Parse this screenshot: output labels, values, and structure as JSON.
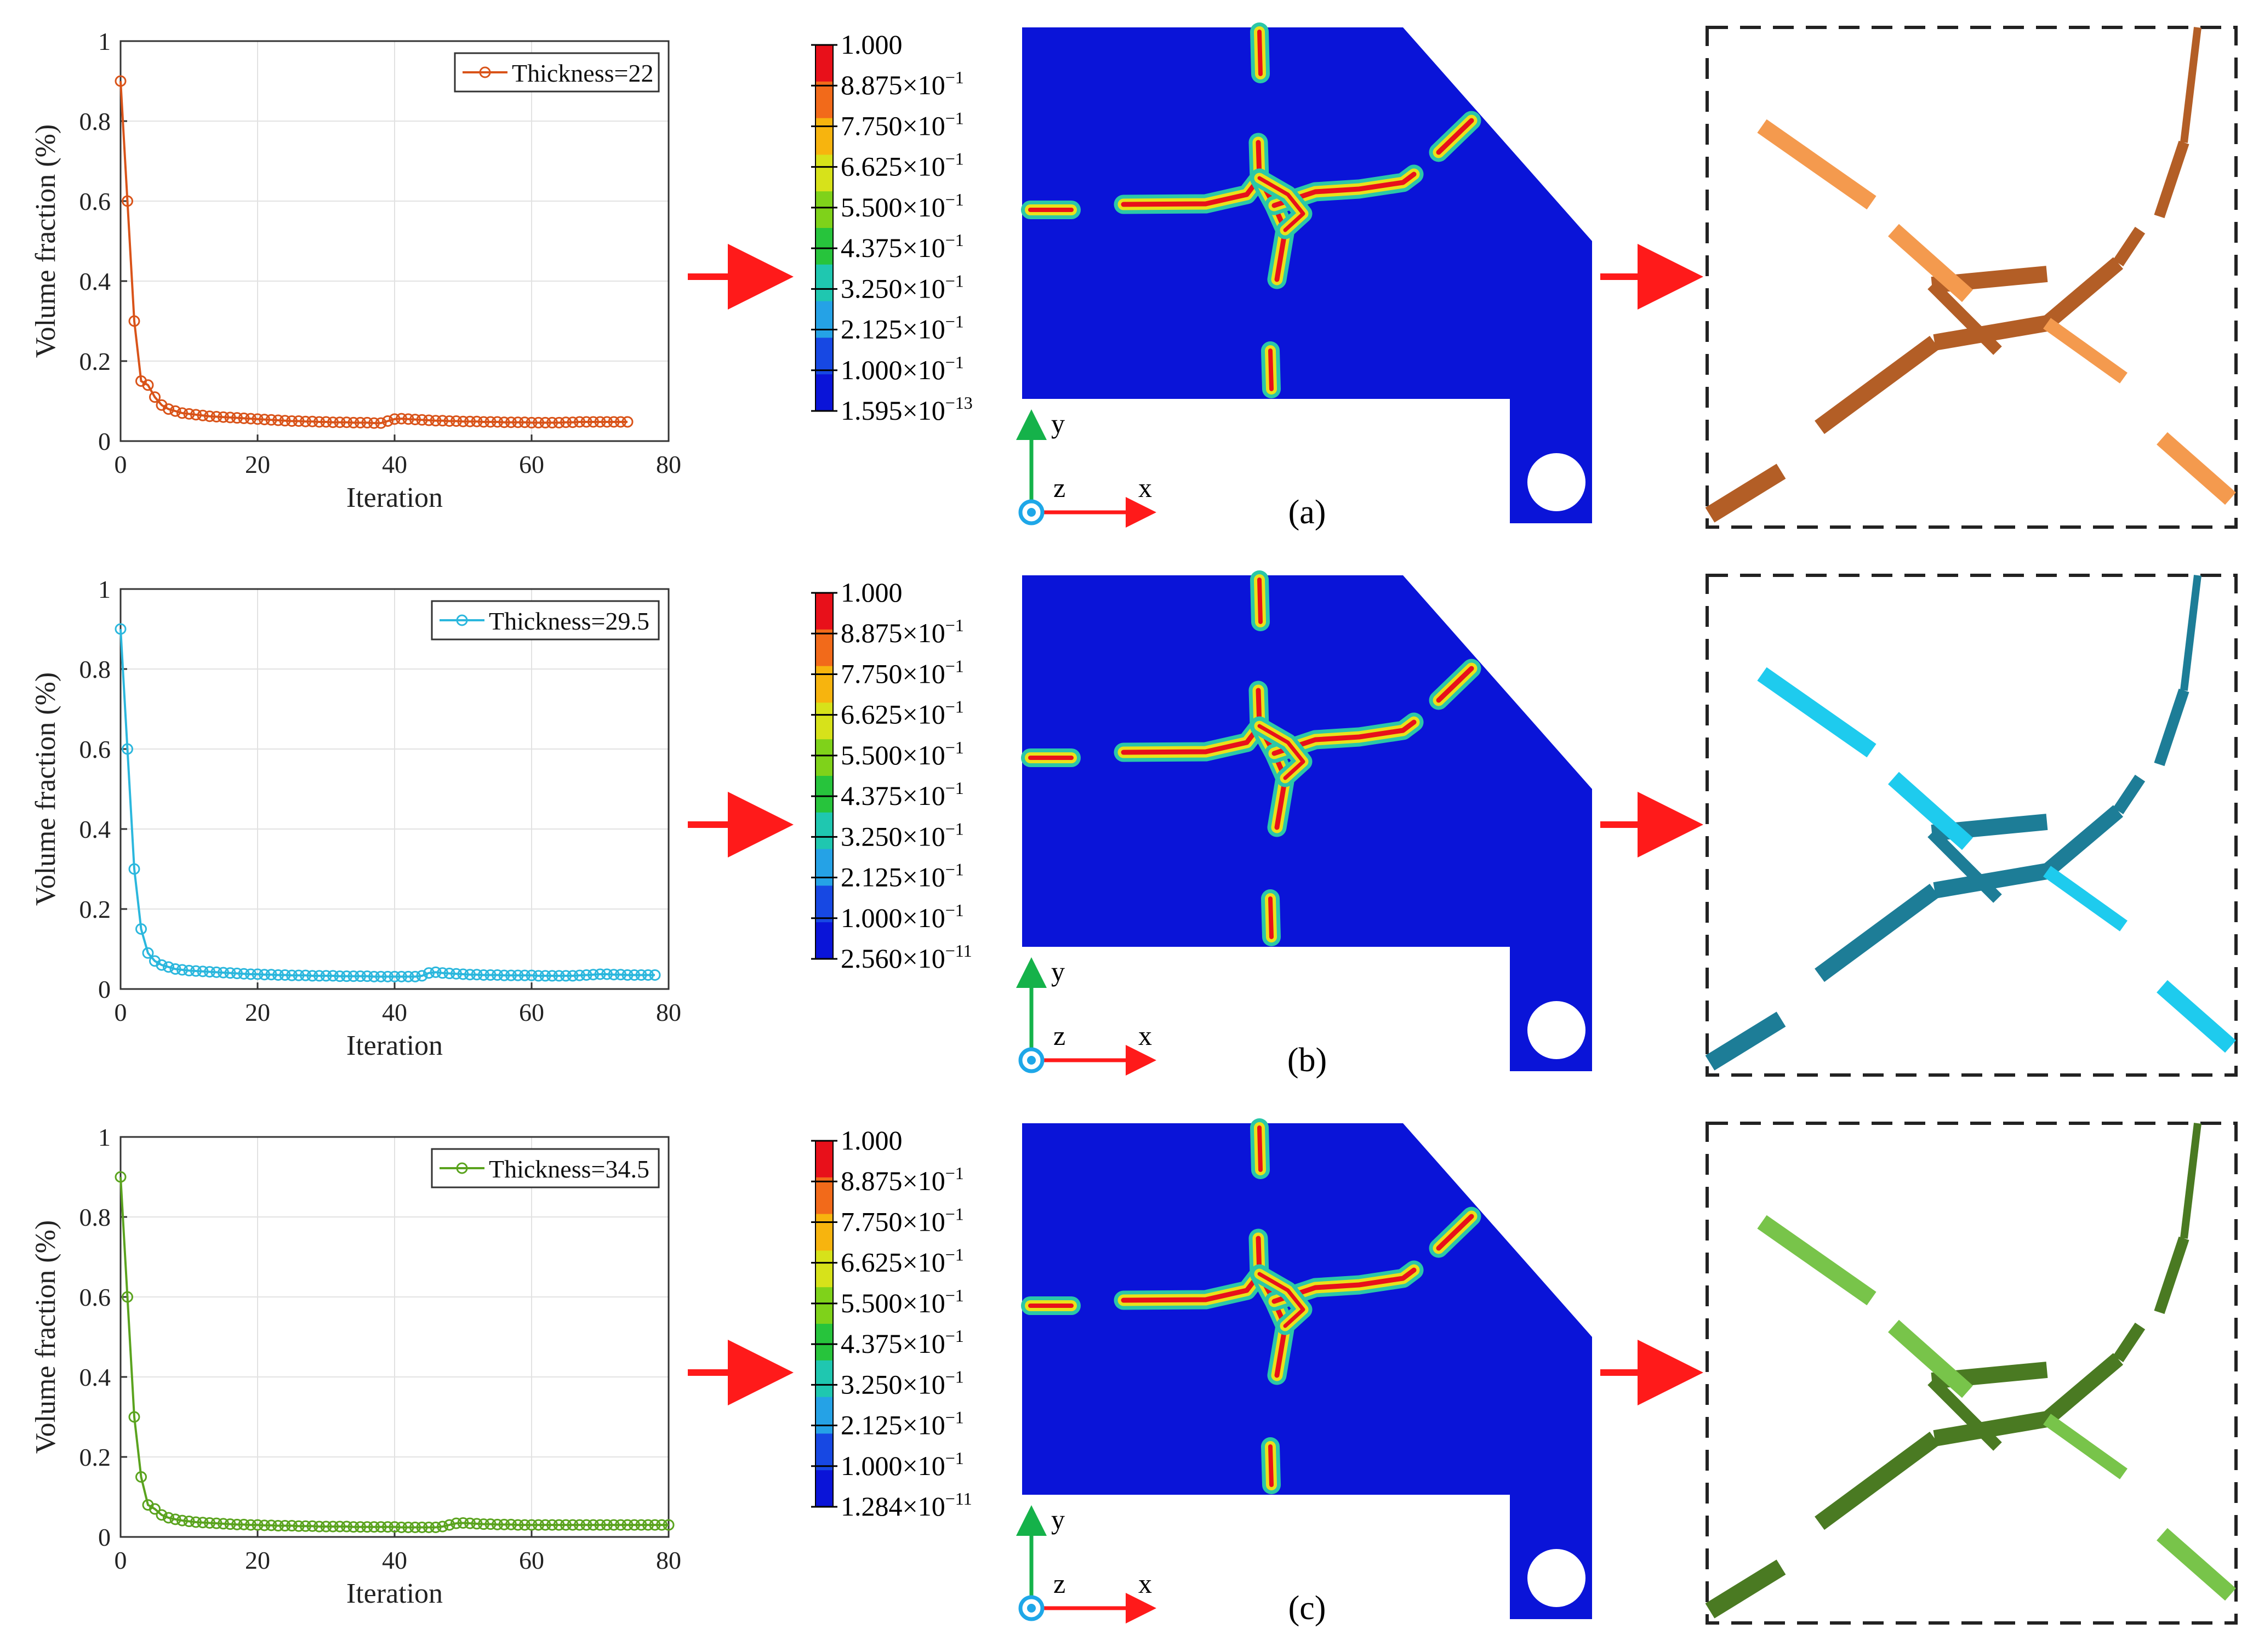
{
  "colors": {
    "orange": "#d95319",
    "cyan": "#2bb7dd",
    "green": "#5aa31e",
    "field_blue": "#0a14d8",
    "arrow_red": "#ff1a1a",
    "axis_green": "#15b24a",
    "axis_blue": "#1ea7e8"
  },
  "colorbar": {
    "tick_labels": [
      {
        "mant": "1.000",
        "exp": ""
      },
      {
        "mant": "8.875",
        "exp": "−1"
      },
      {
        "mant": "7.750",
        "exp": "−1"
      },
      {
        "mant": "6.625",
        "exp": "−1"
      },
      {
        "mant": "5.500",
        "exp": "−1"
      },
      {
        "mant": "4.375",
        "exp": "−1"
      },
      {
        "mant": "3.250",
        "exp": "−1"
      },
      {
        "mant": "2.125",
        "exp": "−1"
      },
      {
        "mant": "1.000",
        "exp": "−1"
      }
    ],
    "times": "×10",
    "colors": [
      "#e8101a",
      "#f26a1a",
      "#f7b40e",
      "#d7e21a",
      "#7fd21a",
      "#27c43c",
      "#1fc7b0",
      "#25a2e6",
      "#1748e3",
      "#0a14d8"
    ]
  },
  "coord": {
    "x": "x",
    "y": "y",
    "z": "z"
  },
  "rows": [
    {
      "panel_label": "(a)",
      "panel_letter": "a",
      "cb_min": {
        "mant": "1.595",
        "exp": "−13"
      },
      "color_key": "orange"
    },
    {
      "panel_label": "(b)",
      "panel_letter": "b",
      "cb_min": {
        "mant": "2.560",
        "exp": "−11"
      },
      "color_key": "cyan"
    },
    {
      "panel_label": "(c)",
      "panel_letter": "c",
      "cb_min": {
        "mant": "1.284",
        "exp": "−11"
      },
      "color_key": "green"
    }
  ],
  "chart_data": [
    {
      "type": "line",
      "title": "",
      "xlabel": "Iteration",
      "ylabel": "Volume fraction (%)",
      "xlim": [
        0,
        80
      ],
      "ylim": [
        0,
        1
      ],
      "xticks": [
        0,
        20,
        40,
        60,
        80
      ],
      "yticks": [
        0,
        0.2,
        0.4,
        0.6,
        0.8,
        1
      ],
      "ytick_labels": [
        "0",
        "0.2",
        "0.4",
        "0.6",
        "0.8",
        "1"
      ],
      "grid": true,
      "legend_position": "top-right",
      "series": [
        {
          "name": "Thickness=22",
          "color": "#d95319",
          "x": [
            0,
            1,
            2,
            3,
            4,
            5,
            6,
            7,
            8,
            9,
            10,
            11,
            12,
            13,
            14,
            15,
            16,
            17,
            18,
            19,
            20,
            21,
            22,
            23,
            24,
            25,
            26,
            27,
            28,
            29,
            30,
            31,
            32,
            33,
            34,
            35,
            36,
            37,
            38,
            39,
            40,
            41,
            42,
            43,
            44,
            45,
            46,
            47,
            48,
            49,
            50,
            51,
            52,
            53,
            54,
            55,
            56,
            57,
            58,
            59,
            60,
            61,
            62,
            63,
            64,
            65,
            66,
            67,
            68,
            69,
            70,
            71,
            72,
            73,
            74
          ],
          "y": [
            0.9,
            0.6,
            0.3,
            0.15,
            0.14,
            0.11,
            0.09,
            0.08,
            0.075,
            0.07,
            0.068,
            0.066,
            0.064,
            0.062,
            0.061,
            0.06,
            0.059,
            0.058,
            0.057,
            0.056,
            0.055,
            0.054,
            0.053,
            0.052,
            0.051,
            0.05,
            0.05,
            0.049,
            0.049,
            0.048,
            0.048,
            0.047,
            0.047,
            0.047,
            0.046,
            0.046,
            0.046,
            0.045,
            0.045,
            0.05,
            0.055,
            0.056,
            0.055,
            0.054,
            0.053,
            0.052,
            0.051,
            0.051,
            0.05,
            0.05,
            0.049,
            0.049,
            0.049,
            0.048,
            0.048,
            0.048,
            0.047,
            0.047,
            0.047,
            0.047,
            0.046,
            0.046,
            0.046,
            0.046,
            0.046,
            0.047,
            0.047,
            0.048,
            0.048,
            0.048,
            0.048,
            0.048,
            0.048,
            0.048,
            0.048
          ]
        }
      ]
    },
    {
      "type": "line",
      "title": "",
      "xlabel": "Iteration",
      "ylabel": "Volume fraction (%)",
      "xlim": [
        0,
        80
      ],
      "ylim": [
        0,
        1
      ],
      "xticks": [
        0,
        20,
        40,
        60,
        80
      ],
      "yticks": [
        0,
        0.2,
        0.4,
        0.6,
        0.8,
        1
      ],
      "ytick_labels": [
        "0",
        "0.2",
        "0.4",
        "0.6",
        "0.8",
        "1"
      ],
      "grid": true,
      "legend_position": "top-right",
      "series": [
        {
          "name": "Thickness=29.5",
          "color": "#2bb7dd",
          "x": [
            0,
            1,
            2,
            3,
            4,
            5,
            6,
            7,
            8,
            9,
            10,
            11,
            12,
            13,
            14,
            15,
            16,
            17,
            18,
            19,
            20,
            21,
            22,
            23,
            24,
            25,
            26,
            27,
            28,
            29,
            30,
            31,
            32,
            33,
            34,
            35,
            36,
            37,
            38,
            39,
            40,
            41,
            42,
            43,
            44,
            45,
            46,
            47,
            48,
            49,
            50,
            51,
            52,
            53,
            54,
            55,
            56,
            57,
            58,
            59,
            60,
            61,
            62,
            63,
            64,
            65,
            66,
            67,
            68,
            69,
            70,
            71,
            72,
            73,
            74,
            75,
            76,
            77,
            78
          ],
          "y": [
            0.9,
            0.6,
            0.3,
            0.15,
            0.09,
            0.07,
            0.06,
            0.055,
            0.05,
            0.048,
            0.046,
            0.045,
            0.044,
            0.043,
            0.042,
            0.041,
            0.04,
            0.039,
            0.038,
            0.037,
            0.037,
            0.036,
            0.036,
            0.035,
            0.035,
            0.034,
            0.034,
            0.034,
            0.033,
            0.033,
            0.033,
            0.033,
            0.032,
            0.032,
            0.032,
            0.032,
            0.032,
            0.031,
            0.031,
            0.031,
            0.031,
            0.031,
            0.031,
            0.031,
            0.033,
            0.04,
            0.042,
            0.04,
            0.039,
            0.038,
            0.037,
            0.036,
            0.036,
            0.035,
            0.035,
            0.035,
            0.034,
            0.034,
            0.034,
            0.034,
            0.034,
            0.033,
            0.033,
            0.033,
            0.033,
            0.033,
            0.033,
            0.034,
            0.035,
            0.036,
            0.037,
            0.037,
            0.036,
            0.036,
            0.035,
            0.035,
            0.035,
            0.035,
            0.035
          ]
        }
      ]
    },
    {
      "type": "line",
      "title": "",
      "xlabel": "Iteration",
      "ylabel": "Volume fraction (%)",
      "xlim": [
        0,
        80
      ],
      "ylim": [
        0,
        1
      ],
      "xticks": [
        0,
        20,
        40,
        60,
        80
      ],
      "yticks": [
        0,
        0.2,
        0.4,
        0.6,
        0.8,
        1
      ],
      "ytick_labels": [
        "0",
        "0.2",
        "0.4",
        "0.6",
        "0.8",
        "1"
      ],
      "grid": true,
      "legend_position": "top-right",
      "series": [
        {
          "name": "Thickness=34.5",
          "color": "#5aa31e",
          "x": [
            0,
            1,
            2,
            3,
            4,
            5,
            6,
            7,
            8,
            9,
            10,
            11,
            12,
            13,
            14,
            15,
            16,
            17,
            18,
            19,
            20,
            21,
            22,
            23,
            24,
            25,
            26,
            27,
            28,
            29,
            30,
            31,
            32,
            33,
            34,
            35,
            36,
            37,
            38,
            39,
            40,
            41,
            42,
            43,
            44,
            45,
            46,
            47,
            48,
            49,
            50,
            51,
            52,
            53,
            54,
            55,
            56,
            57,
            58,
            59,
            60,
            61,
            62,
            63,
            64,
            65,
            66,
            67,
            68,
            69,
            70,
            71,
            72,
            73,
            74,
            75,
            76,
            77,
            78,
            79,
            80
          ],
          "y": [
            0.9,
            0.6,
            0.3,
            0.15,
            0.08,
            0.07,
            0.055,
            0.048,
            0.044,
            0.041,
            0.039,
            0.037,
            0.036,
            0.035,
            0.034,
            0.033,
            0.032,
            0.031,
            0.031,
            0.03,
            0.03,
            0.029,
            0.029,
            0.028,
            0.028,
            0.028,
            0.027,
            0.027,
            0.027,
            0.026,
            0.026,
            0.026,
            0.026,
            0.026,
            0.025,
            0.025,
            0.025,
            0.025,
            0.025,
            0.025,
            0.025,
            0.024,
            0.024,
            0.024,
            0.024,
            0.024,
            0.024,
            0.026,
            0.03,
            0.034,
            0.035,
            0.034,
            0.033,
            0.032,
            0.032,
            0.031,
            0.031,
            0.031,
            0.03,
            0.03,
            0.03,
            0.03,
            0.03,
            0.03,
            0.03,
            0.03,
            0.03,
            0.03,
            0.03,
            0.03,
            0.03,
            0.03,
            0.03,
            0.03,
            0.03,
            0.03,
            0.03,
            0.03,
            0.03,
            0.03,
            0.03
          ]
        }
      ]
    }
  ]
}
